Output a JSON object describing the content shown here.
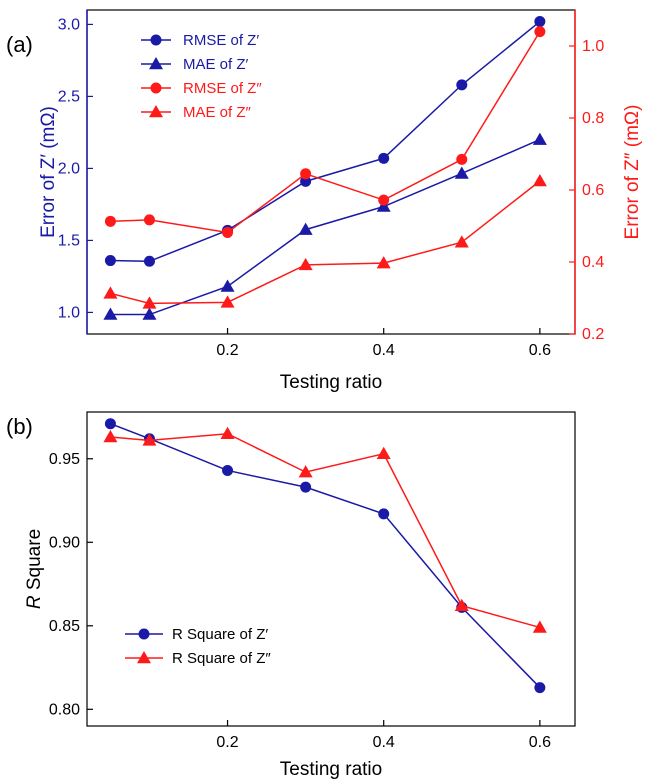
{
  "chart_data": [
    {
      "panel_label": "(a)",
      "type": "line",
      "xlabel": "Testing ratio",
      "ylabel_left": "Error of Z′ (mΩ)",
      "ylabel_right": "Error of Z″ (mΩ)",
      "xlim": [
        0.02,
        0.645
      ],
      "ylim_left": [
        0.85,
        3.1
      ],
      "ylim_right": [
        0.2,
        1.1
      ],
      "x_ticks": [
        0.2,
        0.4,
        0.6
      ],
      "x_tick_labels": [
        "0.2",
        "0.4",
        "0.6"
      ],
      "y_left_ticks": [
        1.0,
        1.5,
        2.0,
        2.5,
        3.0
      ],
      "y_left_tick_labels": [
        "1.0",
        "1.5",
        "2.0",
        "2.5",
        "3.0"
      ],
      "y_right_ticks": [
        0.2,
        0.4,
        0.6,
        0.8,
        1.0
      ],
      "y_right_tick_labels": [
        "0.2",
        "0.4",
        "0.6",
        "0.8",
        "1.0"
      ],
      "left_axis_color": "#1a1aa6",
      "right_axis_color": "#ff1a1a",
      "legend_position": "top-left",
      "series": [
        {
          "name": "RMSE of Z′",
          "axis": "left",
          "color": "#1a1aa6",
          "marker": "circle",
          "x": [
            0.05,
            0.1,
            0.2,
            0.3,
            0.4,
            0.5,
            0.6
          ],
          "y": [
            1.36,
            1.355,
            1.57,
            1.91,
            2.07,
            2.58,
            3.02
          ]
        },
        {
          "name": "MAE of Z′",
          "axis": "left",
          "color": "#1a1aa6",
          "marker": "triangle",
          "x": [
            0.05,
            0.1,
            0.2,
            0.3,
            0.4,
            0.5,
            0.6
          ],
          "y": [
            0.985,
            0.985,
            1.18,
            1.575,
            1.735,
            1.965,
            2.2
          ]
        },
        {
          "name": "RMSE of Z″",
          "axis": "right",
          "color": "#ff1a1a",
          "marker": "circle",
          "x": [
            0.05,
            0.1,
            0.2,
            0.3,
            0.4,
            0.5,
            0.6
          ],
          "y": [
            0.513,
            0.517,
            0.482,
            0.645,
            0.572,
            0.685,
            1.04
          ]
        },
        {
          "name": "MAE of Z″",
          "axis": "right",
          "color": "#ff1a1a",
          "marker": "triangle",
          "x": [
            0.05,
            0.1,
            0.2,
            0.3,
            0.4,
            0.5,
            0.6
          ],
          "y": [
            0.313,
            0.285,
            0.288,
            0.392,
            0.397,
            0.455,
            0.625
          ]
        }
      ]
    },
    {
      "panel_label": "(b)",
      "type": "line",
      "xlabel": "Testing ratio",
      "ylabel_italic": "R",
      "ylabel_rest": " Square",
      "xlim": [
        0.02,
        0.645
      ],
      "ylim": [
        0.79,
        0.978
      ],
      "x_ticks": [
        0.2,
        0.4,
        0.6
      ],
      "x_tick_labels": [
        "0.2",
        "0.4",
        "0.6"
      ],
      "y_ticks": [
        0.8,
        0.85,
        0.9,
        0.95
      ],
      "y_tick_labels": [
        "0.80",
        "0.85",
        "0.90",
        "0.95"
      ],
      "legend_position": "bottom-left",
      "series": [
        {
          "name": "R Square of Z′",
          "color": "#1a1aa6",
          "marker": "circle",
          "x": [
            0.05,
            0.1,
            0.2,
            0.3,
            0.4,
            0.5,
            0.6
          ],
          "y": [
            0.971,
            0.962,
            0.943,
            0.933,
            0.917,
            0.861,
            0.813
          ]
        },
        {
          "name": "R Square of Z″",
          "color": "#ff1a1a",
          "marker": "triangle",
          "x": [
            0.05,
            0.1,
            0.2,
            0.3,
            0.4,
            0.5,
            0.6
          ],
          "y": [
            0.963,
            0.961,
            0.965,
            0.942,
            0.953,
            0.862,
            0.849
          ]
        }
      ]
    }
  ]
}
